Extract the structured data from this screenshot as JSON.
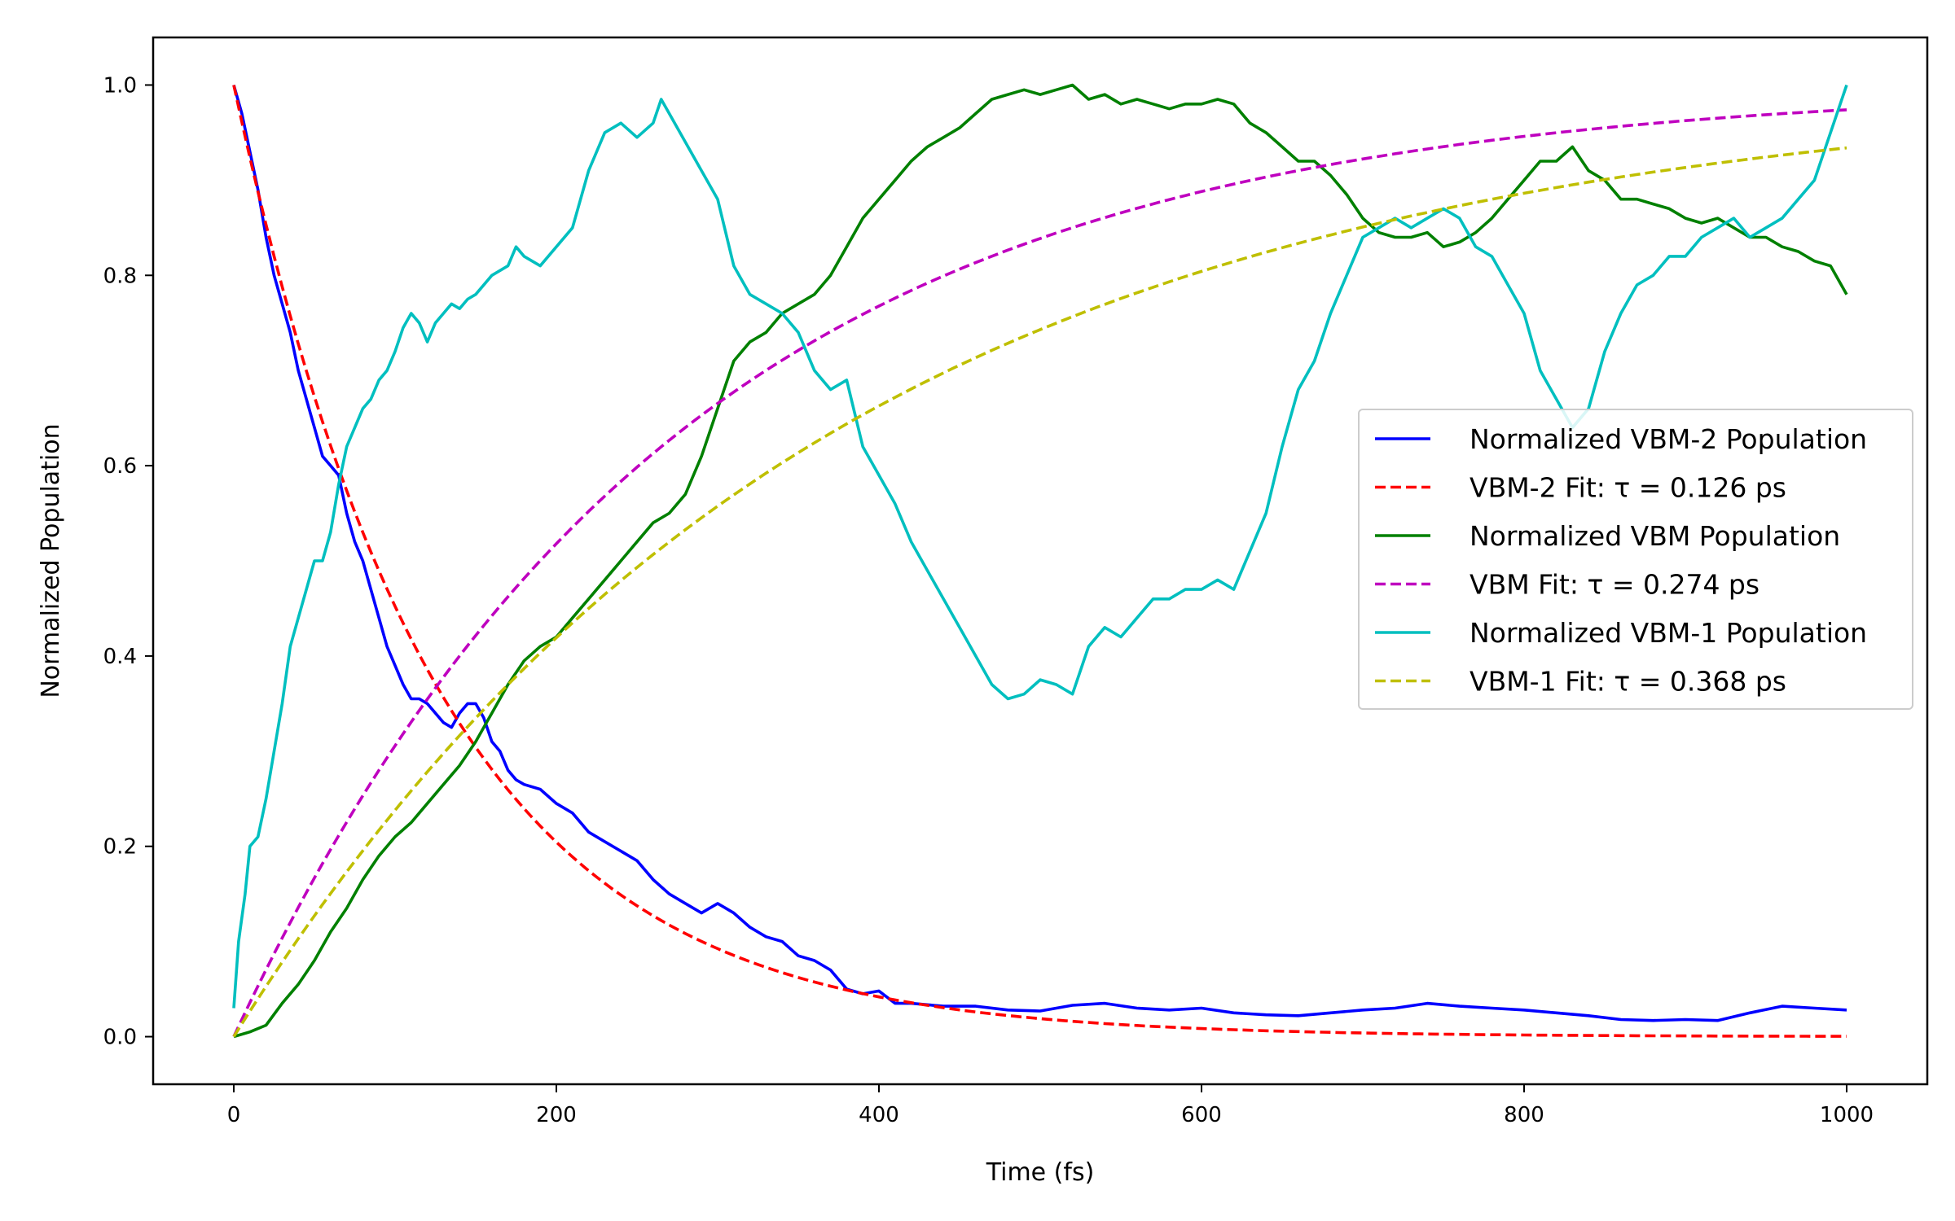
{
  "chart_data": {
    "type": "line",
    "xlabel": "Time (fs)",
    "ylabel": "Normalized Population",
    "xlim": [
      -50,
      1050
    ],
    "ylim": [
      -0.05,
      1.05
    ],
    "x_ticks": [
      0,
      200,
      400,
      600,
      800,
      1000
    ],
    "x_tick_labels": [
      "0",
      "200",
      "400",
      "600",
      "800",
      "1000"
    ],
    "y_ticks": [
      0.0,
      0.2,
      0.4,
      0.6,
      0.8,
      1.0
    ],
    "y_tick_labels": [
      "0.0",
      "0.2",
      "0.4",
      "0.6",
      "0.8",
      "1.0"
    ],
    "grid": false,
    "legend_position": "center-right",
    "series": [
      {
        "name": "Normalized VBM-2 Population",
        "color": "#0000ff",
        "style": "solid",
        "points": [
          [
            0,
            1.0
          ],
          [
            5,
            0.97
          ],
          [
            10,
            0.93
          ],
          [
            15,
            0.89
          ],
          [
            20,
            0.84
          ],
          [
            25,
            0.8
          ],
          [
            30,
            0.77
          ],
          [
            35,
            0.74
          ],
          [
            40,
            0.7
          ],
          [
            45,
            0.67
          ],
          [
            50,
            0.64
          ],
          [
            55,
            0.61
          ],
          [
            60,
            0.6
          ],
          [
            65,
            0.59
          ],
          [
            70,
            0.55
          ],
          [
            75,
            0.52
          ],
          [
            80,
            0.5
          ],
          [
            85,
            0.47
          ],
          [
            90,
            0.44
          ],
          [
            95,
            0.41
          ],
          [
            100,
            0.39
          ],
          [
            105,
            0.37
          ],
          [
            110,
            0.355
          ],
          [
            115,
            0.355
          ],
          [
            120,
            0.35
          ],
          [
            125,
            0.34
          ],
          [
            130,
            0.33
          ],
          [
            135,
            0.325
          ],
          [
            140,
            0.34
          ],
          [
            145,
            0.35
          ],
          [
            150,
            0.35
          ],
          [
            155,
            0.335
          ],
          [
            160,
            0.31
          ],
          [
            165,
            0.3
          ],
          [
            170,
            0.28
          ],
          [
            175,
            0.27
          ],
          [
            180,
            0.265
          ],
          [
            190,
            0.26
          ],
          [
            200,
            0.245
          ],
          [
            210,
            0.235
          ],
          [
            220,
            0.215
          ],
          [
            230,
            0.205
          ],
          [
            240,
            0.195
          ],
          [
            250,
            0.185
          ],
          [
            260,
            0.165
          ],
          [
            270,
            0.15
          ],
          [
            280,
            0.14
          ],
          [
            290,
            0.13
          ],
          [
            300,
            0.14
          ],
          [
            310,
            0.13
          ],
          [
            320,
            0.115
          ],
          [
            330,
            0.105
          ],
          [
            340,
            0.1
          ],
          [
            350,
            0.085
          ],
          [
            360,
            0.08
          ],
          [
            370,
            0.07
          ],
          [
            380,
            0.05
          ],
          [
            390,
            0.045
          ],
          [
            400,
            0.048
          ],
          [
            410,
            0.035
          ],
          [
            420,
            0.035
          ],
          [
            440,
            0.032
          ],
          [
            460,
            0.032
          ],
          [
            480,
            0.028
          ],
          [
            500,
            0.027
          ],
          [
            520,
            0.033
          ],
          [
            540,
            0.035
          ],
          [
            560,
            0.03
          ],
          [
            580,
            0.028
          ],
          [
            600,
            0.03
          ],
          [
            620,
            0.025
          ],
          [
            640,
            0.023
          ],
          [
            660,
            0.022
          ],
          [
            680,
            0.025
          ],
          [
            700,
            0.028
          ],
          [
            720,
            0.03
          ],
          [
            740,
            0.035
          ],
          [
            760,
            0.032
          ],
          [
            780,
            0.03
          ],
          [
            800,
            0.028
          ],
          [
            820,
            0.025
          ],
          [
            840,
            0.022
          ],
          [
            860,
            0.018
          ],
          [
            880,
            0.017
          ],
          [
            900,
            0.018
          ],
          [
            920,
            0.017
          ],
          [
            940,
            0.025
          ],
          [
            960,
            0.032
          ],
          [
            980,
            0.03
          ],
          [
            1000,
            0.028
          ]
        ]
      },
      {
        "name": "VBM-2 Fit: τ = 0.126 ps",
        "color": "#ff0000",
        "style": "dashed",
        "fit": {
          "kind": "decay",
          "tau": 126
        }
      },
      {
        "name": "Normalized VBM Population",
        "color": "#008000",
        "style": "solid",
        "points": [
          [
            0,
            0.0
          ],
          [
            10,
            0.005
          ],
          [
            20,
            0.012
          ],
          [
            30,
            0.035
          ],
          [
            40,
            0.055
          ],
          [
            50,
            0.08
          ],
          [
            60,
            0.11
          ],
          [
            70,
            0.135
          ],
          [
            80,
            0.165
          ],
          [
            90,
            0.19
          ],
          [
            100,
            0.21
          ],
          [
            110,
            0.225
          ],
          [
            120,
            0.245
          ],
          [
            130,
            0.265
          ],
          [
            140,
            0.285
          ],
          [
            150,
            0.31
          ],
          [
            160,
            0.34
          ],
          [
            170,
            0.37
          ],
          [
            180,
            0.395
          ],
          [
            190,
            0.41
          ],
          [
            200,
            0.42
          ],
          [
            210,
            0.44
          ],
          [
            220,
            0.46
          ],
          [
            230,
            0.48
          ],
          [
            240,
            0.5
          ],
          [
            250,
            0.52
          ],
          [
            260,
            0.54
          ],
          [
            270,
            0.55
          ],
          [
            280,
            0.57
          ],
          [
            290,
            0.61
          ],
          [
            300,
            0.66
          ],
          [
            310,
            0.71
          ],
          [
            320,
            0.73
          ],
          [
            330,
            0.74
          ],
          [
            340,
            0.76
          ],
          [
            350,
            0.77
          ],
          [
            360,
            0.78
          ],
          [
            370,
            0.8
          ],
          [
            380,
            0.83
          ],
          [
            390,
            0.86
          ],
          [
            400,
            0.88
          ],
          [
            410,
            0.9
          ],
          [
            420,
            0.92
          ],
          [
            430,
            0.935
          ],
          [
            440,
            0.945
          ],
          [
            450,
            0.955
          ],
          [
            460,
            0.97
          ],
          [
            470,
            0.985
          ],
          [
            480,
            0.99
          ],
          [
            490,
            0.995
          ],
          [
            500,
            0.99
          ],
          [
            510,
            0.995
          ],
          [
            520,
            1.0
          ],
          [
            530,
            0.985
          ],
          [
            540,
            0.99
          ],
          [
            550,
            0.98
          ],
          [
            560,
            0.985
          ],
          [
            570,
            0.98
          ],
          [
            580,
            0.975
          ],
          [
            590,
            0.98
          ],
          [
            600,
            0.98
          ],
          [
            610,
            0.985
          ],
          [
            620,
            0.98
          ],
          [
            630,
            0.96
          ],
          [
            640,
            0.95
          ],
          [
            650,
            0.935
          ],
          [
            660,
            0.92
          ],
          [
            670,
            0.92
          ],
          [
            680,
            0.905
          ],
          [
            690,
            0.885
          ],
          [
            700,
            0.86
          ],
          [
            710,
            0.845
          ],
          [
            720,
            0.84
          ],
          [
            730,
            0.84
          ],
          [
            740,
            0.845
          ],
          [
            750,
            0.83
          ],
          [
            760,
            0.835
          ],
          [
            770,
            0.845
          ],
          [
            780,
            0.86
          ],
          [
            790,
            0.88
          ],
          [
            800,
            0.9
          ],
          [
            810,
            0.92
          ],
          [
            820,
            0.92
          ],
          [
            830,
            0.935
          ],
          [
            840,
            0.91
          ],
          [
            850,
            0.9
          ],
          [
            860,
            0.88
          ],
          [
            870,
            0.88
          ],
          [
            880,
            0.875
          ],
          [
            890,
            0.87
          ],
          [
            900,
            0.86
          ],
          [
            910,
            0.855
          ],
          [
            920,
            0.86
          ],
          [
            930,
            0.85
          ],
          [
            940,
            0.84
          ],
          [
            950,
            0.84
          ],
          [
            960,
            0.83
          ],
          [
            970,
            0.825
          ],
          [
            980,
            0.815
          ],
          [
            990,
            0.81
          ],
          [
            1000,
            0.78
          ]
        ]
      },
      {
        "name": "VBM Fit: τ = 0.274 ps",
        "color": "#bf00bf",
        "style": "dashed",
        "fit": {
          "kind": "rise",
          "tau": 274
        }
      },
      {
        "name": "Normalized VBM-1 Population",
        "color": "#00bfbf",
        "style": "solid",
        "points": [
          [
            0,
            0.03
          ],
          [
            3,
            0.1
          ],
          [
            7,
            0.15
          ],
          [
            10,
            0.2
          ],
          [
            15,
            0.21
          ],
          [
            20,
            0.25
          ],
          [
            25,
            0.3
          ],
          [
            30,
            0.35
          ],
          [
            35,
            0.41
          ],
          [
            40,
            0.44
          ],
          [
            45,
            0.47
          ],
          [
            50,
            0.5
          ],
          [
            55,
            0.5
          ],
          [
            60,
            0.53
          ],
          [
            65,
            0.58
          ],
          [
            70,
            0.62
          ],
          [
            75,
            0.64
          ],
          [
            80,
            0.66
          ],
          [
            85,
            0.67
          ],
          [
            90,
            0.69
          ],
          [
            95,
            0.7
          ],
          [
            100,
            0.72
          ],
          [
            105,
            0.745
          ],
          [
            110,
            0.76
          ],
          [
            115,
            0.75
          ],
          [
            120,
            0.73
          ],
          [
            125,
            0.75
          ],
          [
            130,
            0.76
          ],
          [
            135,
            0.77
          ],
          [
            140,
            0.765
          ],
          [
            145,
            0.775
          ],
          [
            150,
            0.78
          ],
          [
            160,
            0.8
          ],
          [
            170,
            0.81
          ],
          [
            175,
            0.83
          ],
          [
            180,
            0.82
          ],
          [
            190,
            0.81
          ],
          [
            200,
            0.83
          ],
          [
            210,
            0.85
          ],
          [
            220,
            0.91
          ],
          [
            230,
            0.95
          ],
          [
            240,
            0.96
          ],
          [
            250,
            0.945
          ],
          [
            260,
            0.96
          ],
          [
            265,
            0.985
          ],
          [
            270,
            0.97
          ],
          [
            280,
            0.94
          ],
          [
            290,
            0.91
          ],
          [
            300,
            0.88
          ],
          [
            310,
            0.81
          ],
          [
            320,
            0.78
          ],
          [
            330,
            0.77
          ],
          [
            340,
            0.76
          ],
          [
            350,
            0.74
          ],
          [
            360,
            0.7
          ],
          [
            370,
            0.68
          ],
          [
            380,
            0.69
          ],
          [
            390,
            0.62
          ],
          [
            400,
            0.59
          ],
          [
            410,
            0.56
          ],
          [
            420,
            0.52
          ],
          [
            430,
            0.49
          ],
          [
            440,
            0.46
          ],
          [
            450,
            0.43
          ],
          [
            460,
            0.4
          ],
          [
            470,
            0.37
          ],
          [
            480,
            0.355
          ],
          [
            490,
            0.36
          ],
          [
            500,
            0.375
          ],
          [
            510,
            0.37
          ],
          [
            520,
            0.36
          ],
          [
            530,
            0.41
          ],
          [
            540,
            0.43
          ],
          [
            550,
            0.42
          ],
          [
            560,
            0.44
          ],
          [
            570,
            0.46
          ],
          [
            580,
            0.46
          ],
          [
            590,
            0.47
          ],
          [
            600,
            0.47
          ],
          [
            610,
            0.48
          ],
          [
            620,
            0.47
          ],
          [
            630,
            0.51
          ],
          [
            640,
            0.55
          ],
          [
            650,
            0.62
          ],
          [
            660,
            0.68
          ],
          [
            670,
            0.71
          ],
          [
            680,
            0.76
          ],
          [
            690,
            0.8
          ],
          [
            700,
            0.84
          ],
          [
            710,
            0.85
          ],
          [
            720,
            0.86
          ],
          [
            730,
            0.85
          ],
          [
            740,
            0.86
          ],
          [
            750,
            0.87
          ],
          [
            760,
            0.86
          ],
          [
            770,
            0.83
          ],
          [
            780,
            0.82
          ],
          [
            790,
            0.79
          ],
          [
            800,
            0.76
          ],
          [
            810,
            0.7
          ],
          [
            820,
            0.67
          ],
          [
            830,
            0.64
          ],
          [
            840,
            0.66
          ],
          [
            850,
            0.72
          ],
          [
            860,
            0.76
          ],
          [
            870,
            0.79
          ],
          [
            880,
            0.8
          ],
          [
            890,
            0.82
          ],
          [
            900,
            0.82
          ],
          [
            910,
            0.84
          ],
          [
            920,
            0.85
          ],
          [
            930,
            0.86
          ],
          [
            940,
            0.84
          ],
          [
            950,
            0.85
          ],
          [
            960,
            0.86
          ],
          [
            970,
            0.88
          ],
          [
            980,
            0.9
          ],
          [
            990,
            0.95
          ],
          [
            1000,
            1.0
          ]
        ]
      },
      {
        "name": "VBM-1 Fit: τ = 0.368 ps",
        "color": "#bfbf00",
        "style": "dashed",
        "fit": {
          "kind": "rise",
          "tau": 368
        }
      }
    ]
  }
}
